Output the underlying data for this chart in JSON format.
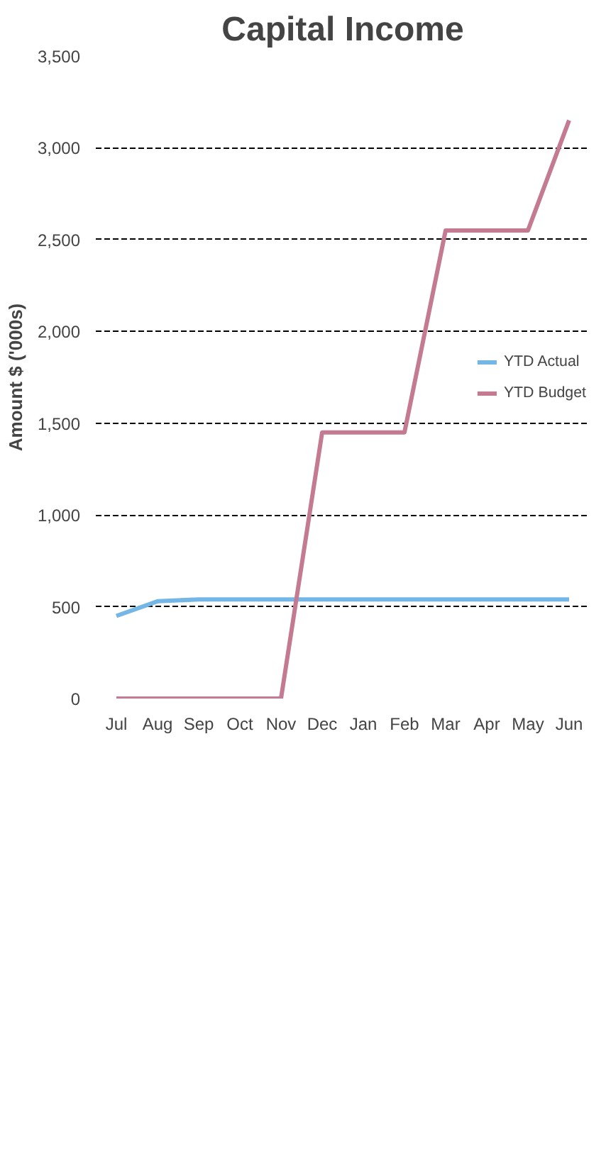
{
  "chart_data": {
    "type": "line",
    "title": "Capital Income",
    "ylabel": "Amount $ ('000s)",
    "categories": [
      "Jul",
      "Aug",
      "Sep",
      "Oct",
      "Nov",
      "Dec",
      "Jan",
      "Feb",
      "Mar",
      "Apr",
      "May",
      "Jun"
    ],
    "series": [
      {
        "name": "YTD Actual",
        "color": "#74b6e6",
        "values": [
          450,
          530,
          540,
          540,
          540,
          540,
          540,
          540,
          540,
          540,
          540,
          540
        ]
      },
      {
        "name": "YTD Budget",
        "color": "#c47a90",
        "values": [
          0,
          0,
          0,
          0,
          0,
          1450,
          1450,
          1450,
          2550,
          2550,
          2550,
          3150
        ]
      }
    ],
    "ylim": [
      0,
      3500
    ],
    "yticks": [
      {
        "value": 0,
        "label": "0"
      },
      {
        "value": 500,
        "label": "500"
      },
      {
        "value": 1000,
        "label": "1,000"
      },
      {
        "value": 1500,
        "label": "1,500"
      },
      {
        "value": 2000,
        "label": "2,000"
      },
      {
        "value": 2500,
        "label": "2,500"
      },
      {
        "value": 3000,
        "label": "3,000"
      },
      {
        "value": 3500,
        "label": "3,500"
      }
    ],
    "grid": "y",
    "legend": "right",
    "marker": "none",
    "line_style": "solid"
  }
}
